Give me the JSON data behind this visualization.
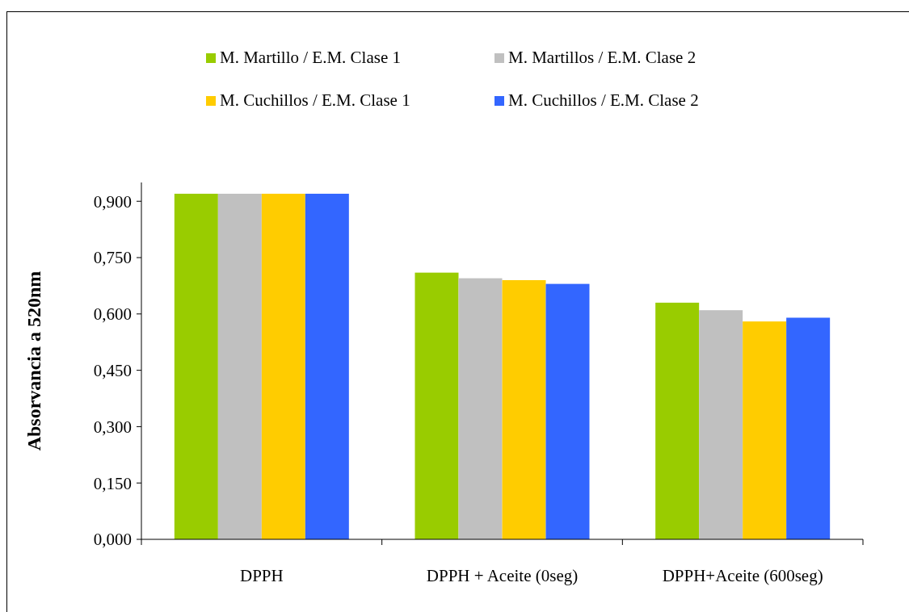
{
  "chart_data": {
    "type": "bar",
    "ylabel": "Absorvancia a 520nm",
    "categories": [
      "DPPH",
      "DPPH + Aceite (0seg)",
      "DPPH+Aceite (600seg)"
    ],
    "series": [
      {
        "name": "M. Martillo / E.M. Clase 1",
        "color": "#99cc00",
        "values": [
          0.92,
          0.71,
          0.63
        ]
      },
      {
        "name": "M. Martillos / E.M. Clase 2",
        "color": "#c0c0c0",
        "values": [
          0.92,
          0.695,
          0.61
        ]
      },
      {
        "name": "M. Cuchillos / E.M. Clase 1",
        "color": "#ffcc00",
        "values": [
          0.92,
          0.69,
          0.58
        ]
      },
      {
        "name": "M. Cuchillos / E.M. Clase 2",
        "color": "#3366ff",
        "values": [
          0.92,
          0.68,
          0.59
        ]
      }
    ],
    "ylim": [
      0,
      0.95
    ],
    "yticks": [
      {
        "value": 0,
        "label": "0,000"
      },
      {
        "value": 0.15,
        "label": "0,150"
      },
      {
        "value": 0.3,
        "label": "0,300"
      },
      {
        "value": 0.45,
        "label": "0,450"
      },
      {
        "value": 0.6,
        "label": "0,600"
      },
      {
        "value": 0.75,
        "label": "0,750"
      },
      {
        "value": 0.9,
        "label": "0,900"
      }
    ],
    "legend": "top",
    "grid": false
  }
}
